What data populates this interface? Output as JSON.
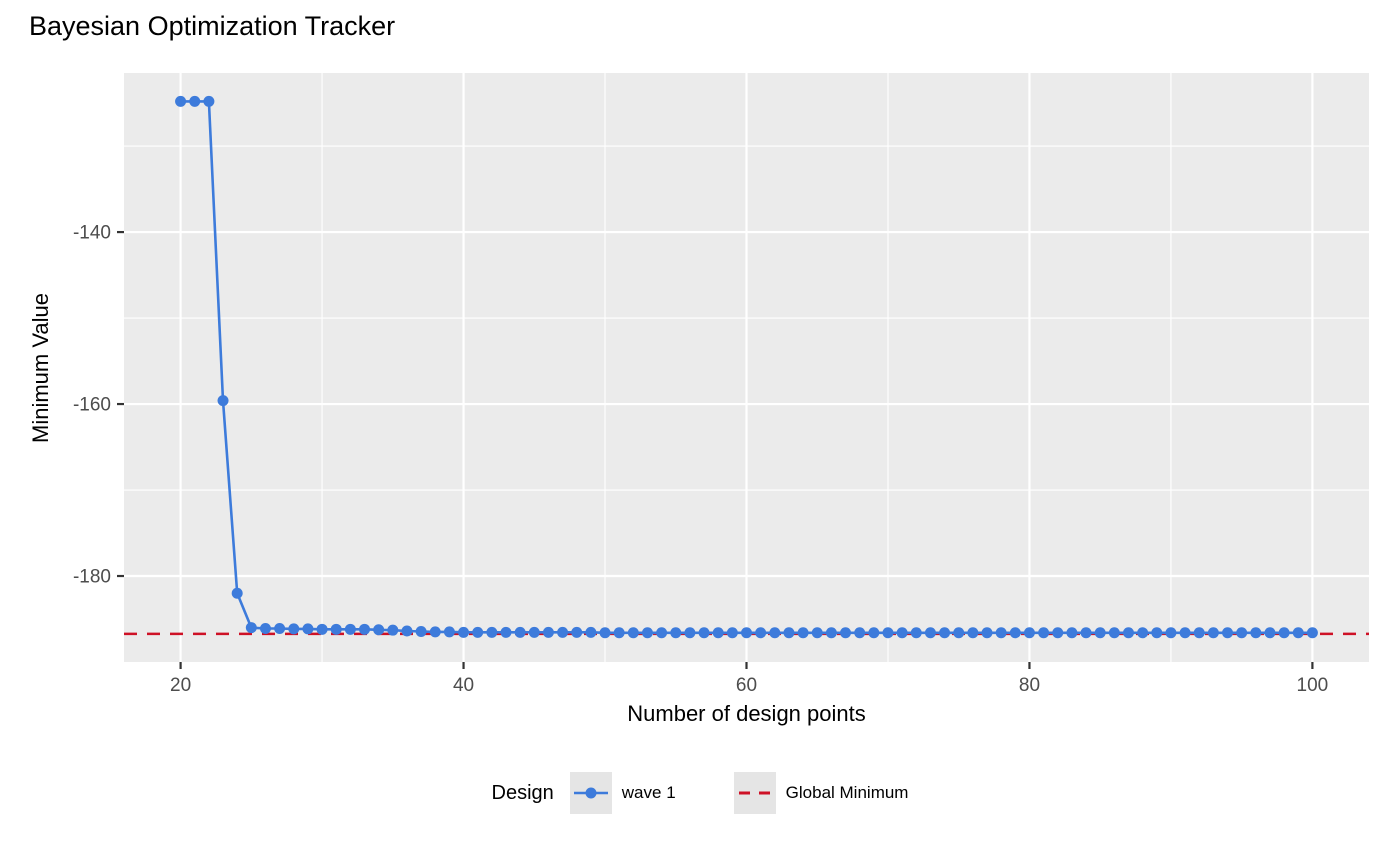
{
  "title": "Bayesian Optimization Tracker",
  "legend": {
    "title": "Design",
    "items": [
      {
        "label": "wave 1",
        "key": "line-with-point",
        "color": "#3D7BDB"
      },
      {
        "label": "Global Minimum",
        "key": "dashed-line",
        "color": "#CE1126"
      }
    ]
  },
  "chart_data": {
    "type": "line",
    "title": "Bayesian Optimization Tracker",
    "xlabel": "Number of design points",
    "ylabel": "Minimum Value",
    "xlim": [
      16,
      104
    ],
    "ylim": [
      -190,
      -121.5
    ],
    "x_ticks": [
      20,
      40,
      60,
      80,
      100
    ],
    "x_minor_ticks": [
      30,
      50,
      70,
      90
    ],
    "y_ticks": [
      -140,
      -160,
      -180
    ],
    "y_minor_ticks": [
      -130,
      -150,
      -170
    ],
    "grid": "on",
    "legend_position": "bottom",
    "series": [
      {
        "name": "wave 1",
        "style": "line+points",
        "color": "#3D7BDB",
        "x": [
          20,
          21,
          22,
          23,
          24,
          25,
          26,
          27,
          28,
          29,
          30,
          31,
          32,
          33,
          34,
          35,
          36,
          37,
          38,
          39,
          40,
          41,
          42,
          43,
          44,
          45,
          46,
          47,
          48,
          49,
          50,
          51,
          52,
          53,
          54,
          55,
          56,
          57,
          58,
          59,
          60,
          61,
          62,
          63,
          64,
          65,
          66,
          67,
          68,
          69,
          70,
          71,
          72,
          73,
          74,
          75,
          76,
          77,
          78,
          79,
          80,
          81,
          82,
          83,
          84,
          85,
          86,
          87,
          88,
          89,
          90,
          91,
          92,
          93,
          94,
          95,
          96,
          97,
          98,
          99,
          100
        ],
        "y": [
          -124.8,
          -124.8,
          -124.8,
          -159.6,
          -182.0,
          -186.0,
          -186.1,
          -186.1,
          -186.15,
          -186.15,
          -186.2,
          -186.2,
          -186.2,
          -186.2,
          -186.25,
          -186.3,
          -186.4,
          -186.45,
          -186.5,
          -186.5,
          -186.55,
          -186.55,
          -186.55,
          -186.55,
          -186.55,
          -186.55,
          -186.55,
          -186.55,
          -186.55,
          -186.55,
          -186.6,
          -186.6,
          -186.6,
          -186.6,
          -186.6,
          -186.6,
          -186.6,
          -186.6,
          -186.6,
          -186.6,
          -186.6,
          -186.6,
          -186.6,
          -186.6,
          -186.6,
          -186.6,
          -186.6,
          -186.6,
          -186.6,
          -186.6,
          -186.6,
          -186.6,
          -186.6,
          -186.6,
          -186.6,
          -186.6,
          -186.6,
          -186.6,
          -186.6,
          -186.6,
          -186.6,
          -186.6,
          -186.6,
          -186.6,
          -186.6,
          -186.6,
          -186.6,
          -186.6,
          -186.6,
          -186.6,
          -186.6,
          -186.6,
          -186.6,
          -186.6,
          -186.6,
          -186.6,
          -186.6,
          -186.6,
          -186.6,
          -186.6,
          -186.6
        ]
      }
    ],
    "hline": {
      "name": "Global Minimum",
      "value": -186.73,
      "color": "#CE1126",
      "style": "dashed"
    },
    "theme": {
      "panel_bg": "#EBEBEB",
      "grid_color": "#FFFFFF",
      "tick_mark_color": "#333333",
      "tick_label_color": "#4D4D4D",
      "legend_key_bg": "#E5E5E5"
    }
  }
}
